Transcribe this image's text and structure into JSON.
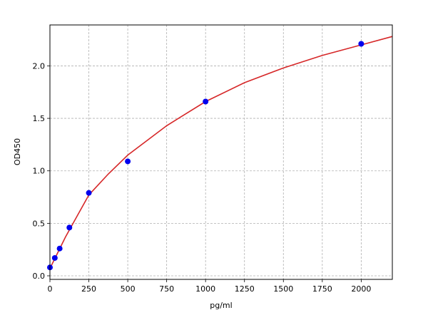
{
  "chart_data": {
    "type": "scatter",
    "xlabel": "pg/ml",
    "ylabel": "OD450",
    "xlim": [
      0,
      2200
    ],
    "ylim": [
      -0.034,
      2.39
    ],
    "xticks": [
      0,
      250,
      500,
      750,
      1000,
      1250,
      1500,
      1750,
      2000
    ],
    "yticks": [
      {
        "value": 0,
        "label": "0.0"
      },
      0.5,
      {
        "value": 1,
        "label": "1.0"
      },
      1.5,
      {
        "value": 2,
        "label": "2.0"
      }
    ],
    "grid": true,
    "series": [
      {
        "kind": "markers",
        "color": "#0000ee",
        "x": [
          0,
          31.25,
          62.5,
          125,
          250,
          500,
          1000,
          2000
        ],
        "values": [
          0.08,
          0.17,
          0.26,
          0.46,
          0.79,
          1.09,
          1.66,
          2.21
        ]
      },
      {
        "kind": "line",
        "color": "#d62728",
        "x": [
          0,
          50,
          100,
          175,
          250,
          375,
          500,
          750,
          1000,
          1250,
          1500,
          1750,
          2000,
          2200
        ],
        "values": [
          0.07,
          0.22,
          0.37,
          0.57,
          0.77,
          0.97,
          1.15,
          1.43,
          1.66,
          1.84,
          1.98,
          2.1,
          2.2,
          2.28
        ]
      }
    ]
  }
}
